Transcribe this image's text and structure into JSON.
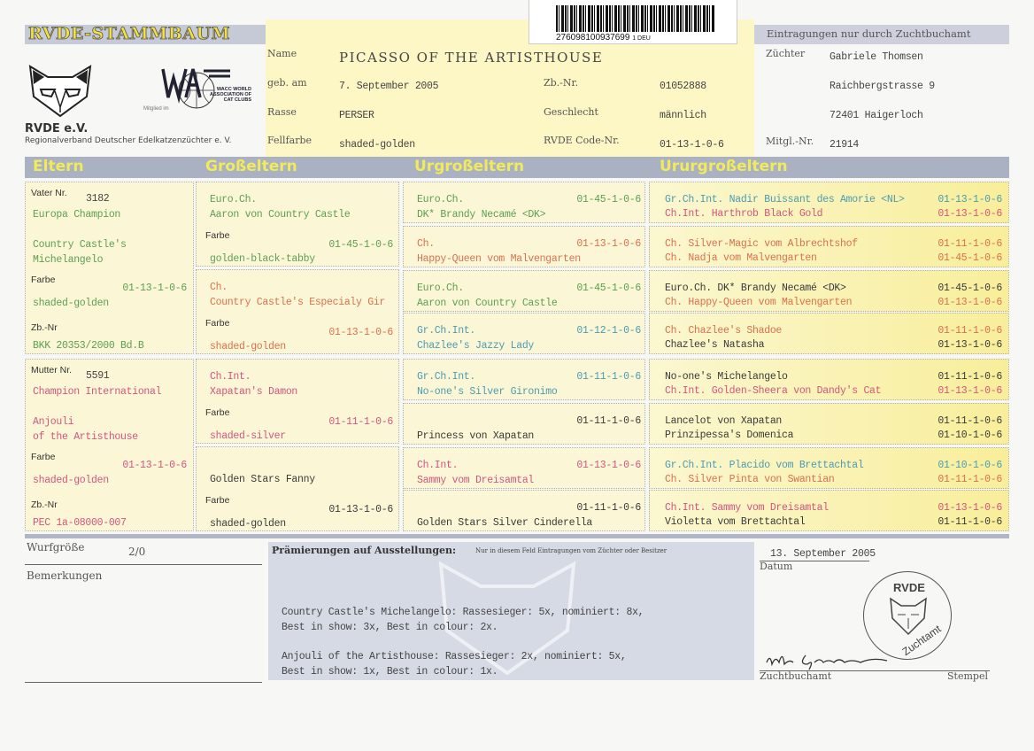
{
  "header": {
    "title": "RVDE-STAMMBAUM",
    "org_short": "RVDE e.V.",
    "org_long": "Regionalverband Deutscher Edelkatzenzüchter e. V.",
    "wacc_member": "Mitglied im",
    "wacc_logo_text": "WACC WORLD ASSOCIATION OF CAT CLUBS",
    "barcode_number": "276098100937699",
    "barcode_suffix": "1 DEU",
    "registry_note": "Eintragungen nur durch Zuchtbuchamt"
  },
  "cat": {
    "name_label": "Name",
    "name": "PICASSO OF THE ARTISTHOUSE",
    "born_label": "geb. am",
    "born": "7. September 2005",
    "breed_label": "Rasse",
    "breed": "PERSER",
    "color_label": "Fellfarbe",
    "color": "shaded-golden",
    "zb_label": "Zb.-Nr.",
    "zb": "01052888",
    "sex_label": "Geschlecht",
    "sex": "männlich",
    "code_label": "RVDE Code-Nr.",
    "code": "01-13-1-0-6"
  },
  "breeder": {
    "label": "Züchter",
    "name": "Gabriele Thomsen",
    "street": "Raichbergstrasse 9",
    "city": "72401 Haigerloch",
    "member_label": "Mitgl.-Nr.",
    "member_no": "21914"
  },
  "sections": [
    "Eltern",
    "Großeltern",
    "Urgroßeltern",
    "Ururgroßeltern"
  ],
  "colors": {
    "green": "#5c9f52",
    "orange": "#d87150",
    "pink": "#d2557f",
    "teal": "#4c9bb2",
    "black": "#3a3a3a"
  },
  "parents": [
    {
      "label": "Vater Nr.",
      "nr": "3182",
      "title": "Europa Champion",
      "name1": "Country Castle's",
      "name2": "Michelangelo",
      "farbe_label": "Farbe",
      "code": "01-13-1-0-6",
      "farbe": "shaded-golden",
      "zb_label": "Zb.-Nr",
      "zb": "BKK 20353/2000 Bd.B",
      "color": "green"
    },
    {
      "label": "Mutter Nr.",
      "nr": "5591",
      "title": "Champion International",
      "name1": "Anjouli",
      "name2": "of the Artisthouse",
      "farbe_label": "Farbe",
      "code": "01-13-1-0-6",
      "farbe": "shaded-golden",
      "zb_label": "Zb.-Nr",
      "zb": "PEC 1a-08000-007",
      "color": "pink"
    }
  ],
  "grandparents": [
    {
      "title": "Euro.Ch.",
      "name": "Aaron von Country Castle",
      "farbe_label": "Farbe",
      "code": "01-45-1-0-6",
      "farbe": "golden-black-tabby",
      "color": "green"
    },
    {
      "title": "Ch.",
      "name": "Country Castle's Especialy Gir",
      "farbe_label": "Farbe",
      "code": "01-13-1-0-6",
      "farbe": "shaded-golden",
      "color": "orange"
    },
    {
      "title": "Ch.Int.",
      "name": "Xapatan's Damon",
      "farbe_label": "Farbe",
      "code": "01-11-1-0-6",
      "farbe": "shaded-silver",
      "color": "pink"
    },
    {
      "title": "",
      "name": "Golden Stars Fanny",
      "farbe_label": "Farbe",
      "code": "01-13-1-0-6",
      "farbe": "shaded-golden",
      "color": "black"
    }
  ],
  "great_grandparents": [
    {
      "title": "Euro.Ch.",
      "code": "01-45-1-0-6",
      "name": "DK* Brandy Necamé <DK>",
      "color": "green"
    },
    {
      "title": "Ch.",
      "code": "01-13-1-0-6",
      "name": "Happy-Queen vom Malvengarten",
      "color": "orange"
    },
    {
      "title": "Euro.Ch.",
      "code": "01-45-1-0-6",
      "name": "Aaron von Country Castle",
      "color": "green"
    },
    {
      "title": "Gr.Ch.Int.",
      "code": "01-12-1-0-6",
      "name": "Chazlee's Jazzy Lady",
      "color": "teal"
    },
    {
      "title": "Gr.Ch.Int.",
      "code": "01-11-1-0-6",
      "name": "No-one's Silver Gironimo",
      "color": "teal"
    },
    {
      "title": "",
      "code": "01-11-1-0-6",
      "name": "Princess von Xapatan",
      "color": "black"
    },
    {
      "title": "Ch.Int.",
      "code": "01-13-1-0-6",
      "name": "Sammy vom Dreisamtal",
      "color": "pink"
    },
    {
      "title": "",
      "code": "01-11-1-0-6",
      "name": "Golden Stars Silver Cinderella",
      "color": "black"
    }
  ],
  "great_great_grandparents": [
    [
      {
        "text": "Gr.Ch.Int. Nadir Buissant des Amorie <NL>",
        "code": "01-13-1-0-6",
        "color": "teal"
      },
      {
        "text": "Ch.Int. Harthrob Black Gold",
        "code": "01-13-1-0-6",
        "color": "pink"
      }
    ],
    [
      {
        "text": "Ch. Silver-Magic vom Albrechtshof",
        "code": "01-11-1-0-6",
        "color": "orange"
      },
      {
        "text": "Ch. Nadja vom Malvengarten",
        "code": "01-45-1-0-6",
        "color": "orange"
      }
    ],
    [
      {
        "text": "Euro.Ch. DK* Brandy Necamé <DK>",
        "code": "01-45-1-0-6",
        "color": "black"
      },
      {
        "text": "Ch. Happy-Queen vom Malvengarten",
        "code": "01-13-1-0-6",
        "color": "orange"
      }
    ],
    [
      {
        "text": "Ch. Chazlee's Shadoe",
        "code": "01-11-1-0-6",
        "color": "orange"
      },
      {
        "text": "Chazlee's Natasha",
        "code": "01-13-1-0-6",
        "color": "black"
      }
    ],
    [
      {
        "text": "No-one's Michelangelo",
        "code": "01-11-1-0-6",
        "color": "black"
      },
      {
        "text": "Ch.Int. Golden-Sheera von Dandy's Cat",
        "code": "01-13-1-0-6",
        "color": "pink"
      }
    ],
    [
      {
        "text": "Lancelot von Xapatan",
        "code": "01-11-1-0-6",
        "color": "black"
      },
      {
        "text": "Prinzipessa's Domenica",
        "code": "01-10-1-0-6",
        "color": "black"
      }
    ],
    [
      {
        "text": "Gr.Ch.Int. Placido vom Brettachtal",
        "code": "01-10-1-0-6",
        "color": "teal"
      },
      {
        "text": "Ch. Silver Pinta von Swantian",
        "code": "01-11-1-0-6",
        "color": "orange"
      }
    ],
    [
      {
        "text": "Ch.Int. Sammy vom Dreisamtal",
        "code": "01-13-1-0-6",
        "color": "pink"
      },
      {
        "text": "Violetta vom Brettachtal",
        "code": "01-11-1-0-6",
        "color": "black"
      }
    ]
  ],
  "footer": {
    "litter_label": "Wurfgröße",
    "litter": "2/0",
    "remarks_label": "Bemerkungen",
    "awards_label": "Prämierungen auf Ausstellungen:",
    "awards_note": "Nur in diesem Feld Eintragungen vom Züchter oder Besitzer",
    "awards": [
      "Country Castle's Michelangelo: Rassesieger: 5x, nominiert: 8x,",
      "Best in show: 3x, Best in colour: 2x.",
      "Anjouli of the Artisthouse: Rassesieger: 2x, nominiert: 5x,",
      "Best in show: 1x, Best in colour: 1x."
    ],
    "date": "13. September 2005",
    "date_label": "Datum",
    "office_label": "Zuchtbuchamt",
    "stamp_label": "Stempel",
    "stamp_text_top": "RVDE",
    "stamp_text_bottom": "Zuchtamt",
    "signature": "Ute Grem..."
  }
}
